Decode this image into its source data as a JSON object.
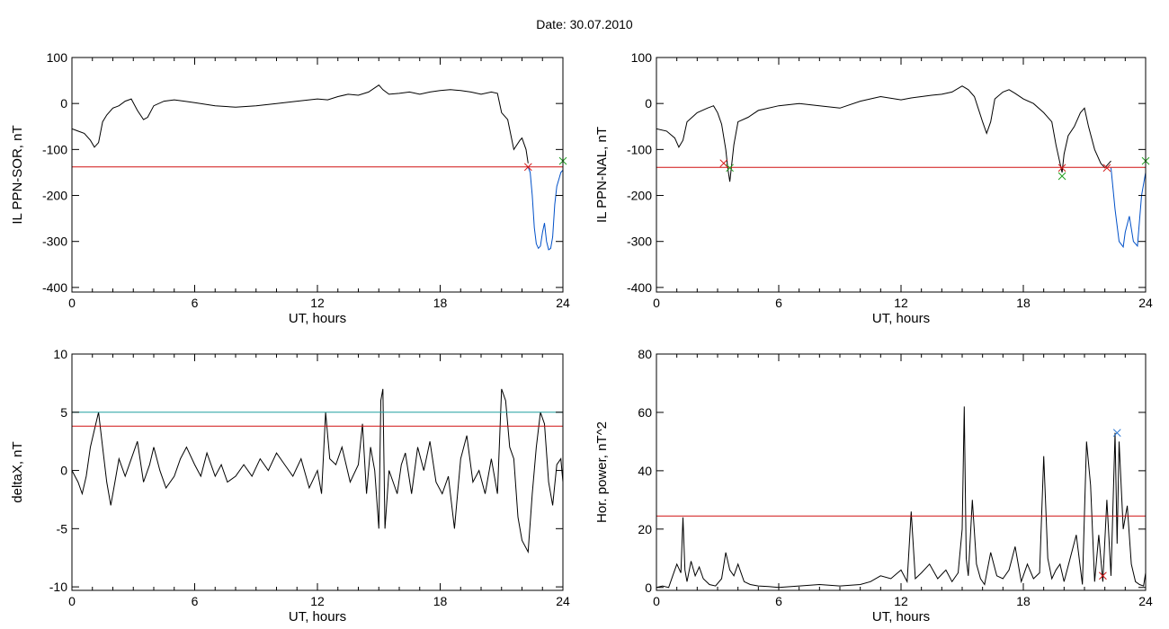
{
  "header": {
    "label": "Date:",
    "date": "30.07.2010"
  },
  "chart_data": [
    {
      "type": "line",
      "id": "il-sor",
      "ylabel": "IL PPN-SOR, nT",
      "xlabel": "UT, hours",
      "xlim": [
        0,
        24
      ],
      "ylim": [
        -410,
        100
      ],
      "xticks": [
        0,
        6,
        12,
        18,
        24
      ],
      "yticks": [
        100,
        0,
        -100,
        -200,
        -300,
        -400
      ],
      "series": [
        {
          "color": "#000000",
          "x": [
            0,
            0.3,
            0.6,
            0.9,
            1.1,
            1.3,
            1.5,
            1.7,
            2.0,
            2.3,
            2.6,
            2.9,
            3.2,
            3.5,
            3.7,
            4.0,
            4.5,
            5.0,
            5.5,
            6.0,
            7.0,
            8.0,
            9.0,
            10.0,
            11.0,
            12.0,
            12.5,
            13.0,
            13.5,
            14.0,
            14.5,
            15.0,
            15.2,
            15.5,
            16.0,
            16.5,
            17.0,
            17.5,
            18.0,
            18.5,
            19.0,
            19.5,
            20.0,
            20.5,
            20.8,
            21.0,
            21.3,
            21.6,
            21.9,
            22.0,
            22.2,
            22.3
          ],
          "y": [
            -55,
            -60,
            -65,
            -80,
            -95,
            -85,
            -40,
            -25,
            -10,
            -5,
            5,
            10,
            -15,
            -35,
            -30,
            -5,
            5,
            8,
            5,
            2,
            -5,
            -8,
            -5,
            0,
            5,
            10,
            8,
            15,
            20,
            18,
            25,
            40,
            30,
            20,
            22,
            25,
            20,
            25,
            28,
            30,
            28,
            25,
            20,
            25,
            22,
            -20,
            -35,
            -100,
            -80,
            -75,
            -100,
            -130
          ]
        },
        {
          "color": "#0050c8",
          "x": [
            22.3,
            22.4,
            22.5,
            22.6,
            22.7,
            22.8,
            22.9,
            23.0,
            23.1,
            23.2,
            23.3,
            23.4,
            23.5,
            23.6,
            23.7,
            23.8,
            23.9,
            24.0
          ],
          "y": [
            -138,
            -150,
            -200,
            -270,
            -305,
            -315,
            -310,
            -280,
            -260,
            -300,
            -318,
            -315,
            -290,
            -220,
            -180,
            -165,
            -150,
            -145
          ]
        },
        {
          "color": "#d01010",
          "x": [
            0,
            24
          ],
          "y": [
            -138,
            -138
          ]
        }
      ],
      "markers": [
        {
          "x": 22.3,
          "y": -138,
          "color": "#d01010"
        },
        {
          "x": 24.0,
          "y": -125,
          "color": "#20a020"
        }
      ]
    },
    {
      "type": "line",
      "id": "il-nal",
      "ylabel": "IL PPN-NAL, nT",
      "xlabel": "UT, hours",
      "xlim": [
        0,
        24
      ],
      "ylim": [
        -410,
        100
      ],
      "xticks": [
        0,
        6,
        12,
        18,
        24
      ],
      "yticks": [
        100,
        0,
        -100,
        -200,
        -300,
        -400
      ],
      "series": [
        {
          "color": "#000000",
          "x": [
            0,
            0.5,
            0.9,
            1.1,
            1.3,
            1.5,
            2.0,
            2.5,
            2.8,
            3.0,
            3.2,
            3.4,
            3.5,
            3.6,
            3.8,
            4.0,
            4.5,
            5.0,
            6.0,
            7.0,
            8.0,
            9.0,
            10.0,
            11.0,
            12.0,
            12.5,
            13.0,
            13.5,
            14.0,
            14.5,
            15.0,
            15.3,
            15.6,
            16.0,
            16.2,
            16.4,
            16.6,
            17.0,
            17.3,
            17.6,
            18.0,
            18.5,
            19.0,
            19.4,
            19.6,
            19.8,
            19.9,
            20.0,
            20.2,
            20.5,
            20.8,
            21.0,
            21.2,
            21.5,
            21.8,
            22.0,
            22.2,
            22.3
          ],
          "y": [
            -55,
            -60,
            -75,
            -95,
            -80,
            -40,
            -20,
            -10,
            -5,
            -20,
            -45,
            -100,
            -140,
            -170,
            -90,
            -40,
            -30,
            -15,
            -5,
            0,
            -5,
            -10,
            5,
            15,
            8,
            12,
            15,
            18,
            20,
            25,
            38,
            30,
            15,
            -40,
            -65,
            -40,
            10,
            25,
            30,
            22,
            10,
            0,
            -20,
            -40,
            -90,
            -130,
            -150,
            -110,
            -70,
            -50,
            -20,
            -10,
            -50,
            -100,
            -130,
            -140,
            -130,
            -125
          ]
        },
        {
          "color": "#0050c8",
          "x": [
            22.3,
            22.5,
            22.7,
            22.9,
            23.0,
            23.2,
            23.4,
            23.6,
            23.8,
            24.0
          ],
          "y": [
            -140,
            -230,
            -300,
            -312,
            -280,
            -245,
            -300,
            -310,
            -200,
            -150
          ]
        },
        {
          "color": "#d01010",
          "x": [
            0,
            24
          ],
          "y": [
            -139,
            -139
          ]
        }
      ],
      "markers": [
        {
          "x": 3.3,
          "y": -130,
          "color": "#d01010"
        },
        {
          "x": 3.6,
          "y": -140,
          "color": "#20a020"
        },
        {
          "x": 19.9,
          "y": -140,
          "color": "#d01010"
        },
        {
          "x": 19.9,
          "y": -158,
          "color": "#20a020"
        },
        {
          "x": 22.1,
          "y": -140,
          "color": "#d01010"
        },
        {
          "x": 24.0,
          "y": -125,
          "color": "#20a020"
        }
      ]
    },
    {
      "type": "line",
      "id": "deltax",
      "ylabel": "deltaX, nT",
      "xlabel": "UT, hours",
      "xlim": [
        0,
        24
      ],
      "ylim": [
        -10.3,
        10
      ],
      "xticks": [
        0,
        6,
        12,
        18,
        24
      ],
      "yticks": [
        10,
        5,
        0,
        -5,
        -10
      ],
      "series": [
        {
          "color": "#000000",
          "x": [
            0,
            0.3,
            0.5,
            0.7,
            0.9,
            1.1,
            1.3,
            1.5,
            1.7,
            1.9,
            2.1,
            2.3,
            2.6,
            2.9,
            3.2,
            3.5,
            3.8,
            4.0,
            4.3,
            4.6,
            5.0,
            5.3,
            5.6,
            6.0,
            6.3,
            6.6,
            7.0,
            7.3,
            7.6,
            8.0,
            8.4,
            8.8,
            9.2,
            9.6,
            10.0,
            10.4,
            10.8,
            11.2,
            11.6,
            12.0,
            12.2,
            12.4,
            12.6,
            12.9,
            13.2,
            13.6,
            14.0,
            14.2,
            14.4,
            14.6,
            14.8,
            15.0,
            15.1,
            15.2,
            15.3,
            15.5,
            15.7,
            15.9,
            16.1,
            16.3,
            16.6,
            16.9,
            17.2,
            17.5,
            17.8,
            18.1,
            18.4,
            18.7,
            19.0,
            19.3,
            19.6,
            19.9,
            20.2,
            20.5,
            20.8,
            21.0,
            21.2,
            21.4,
            21.6,
            21.8,
            22.0,
            22.3,
            22.5,
            22.7,
            22.9,
            23.1,
            23.3,
            23.5,
            23.7,
            23.9,
            24.0
          ],
          "y": [
            0,
            -1,
            -2,
            -0.5,
            2,
            3.5,
            5,
            2,
            -1,
            -3,
            -1,
            1,
            -0.5,
            1,
            2.5,
            -1,
            0.5,
            2,
            0,
            -1.5,
            -0.5,
            1,
            2,
            0.5,
            -0.5,
            1.5,
            -0.5,
            0.5,
            -1,
            -0.5,
            0.5,
            -0.5,
            1,
            0,
            1.5,
            0.5,
            -0.5,
            1,
            -1.5,
            0,
            -2,
            5,
            1,
            0.5,
            2,
            -1,
            0.5,
            4,
            -2,
            2,
            0,
            -5,
            6,
            7,
            -5,
            0,
            -1,
            -2,
            0.5,
            1.5,
            -2,
            2,
            0,
            2.5,
            -1,
            -2,
            -0.5,
            -5,
            1,
            3,
            -1,
            0,
            -2,
            1,
            -2,
            7,
            6,
            2,
            1,
            -4,
            -6,
            -7,
            -2,
            2,
            5,
            4,
            -1,
            -3,
            0.5,
            1,
            -1
          ]
        },
        {
          "color": "#d01010",
          "x": [
            0,
            24
          ],
          "y": [
            3.8,
            3.8
          ]
        },
        {
          "color": "#20a0a0",
          "x": [
            0,
            24
          ],
          "y": [
            5,
            5
          ]
        }
      ],
      "markers": []
    },
    {
      "type": "line",
      "id": "hor-power",
      "ylabel": "Hor. power, nT^2",
      "xlabel": "UT, hours",
      "xlim": [
        0,
        24
      ],
      "ylim": [
        -1,
        80
      ],
      "xticks": [
        0,
        6,
        12,
        18,
        24
      ],
      "yticks": [
        80,
        60,
        40,
        20,
        0
      ],
      "series": [
        {
          "color": "#000000",
          "x": [
            0,
            0.3,
            0.6,
            0.8,
            1.0,
            1.2,
            1.3,
            1.4,
            1.5,
            1.7,
            1.9,
            2.1,
            2.3,
            2.6,
            2.9,
            3.2,
            3.4,
            3.6,
            3.8,
            4.0,
            4.3,
            4.6,
            5.0,
            5.5,
            6.0,
            7.0,
            8.0,
            9.0,
            10.0,
            10.5,
            11.0,
            11.5,
            12.0,
            12.3,
            12.5,
            12.7,
            13.0,
            13.4,
            13.8,
            14.2,
            14.5,
            14.8,
            15.0,
            15.1,
            15.2,
            15.3,
            15.5,
            15.7,
            15.9,
            16.1,
            16.4,
            16.7,
            17.0,
            17.3,
            17.6,
            17.9,
            18.2,
            18.5,
            18.8,
            19.0,
            19.2,
            19.4,
            19.6,
            19.8,
            20.0,
            20.3,
            20.6,
            20.9,
            21.1,
            21.3,
            21.5,
            21.7,
            21.9,
            22.1,
            22.3,
            22.5,
            22.6,
            22.7,
            22.9,
            23.1,
            23.3,
            23.5,
            23.7,
            23.9,
            24.0
          ],
          "y": [
            0,
            0.5,
            0,
            4,
            8,
            5,
            24,
            6,
            2,
            9,
            4,
            7,
            3,
            1,
            0.5,
            3,
            12,
            6,
            4,
            8,
            2,
            1,
            0.5,
            0.3,
            0,
            0.5,
            1,
            0.5,
            1,
            2,
            4,
            3,
            6,
            2,
            26,
            3,
            5,
            8,
            3,
            6,
            2,
            5,
            20,
            62,
            10,
            4,
            30,
            8,
            3,
            1,
            12,
            4,
            3,
            6,
            14,
            2,
            8,
            3,
            5,
            45,
            10,
            3,
            6,
            8,
            2,
            10,
            18,
            1,
            50,
            35,
            2,
            18,
            2,
            30,
            4,
            53,
            15,
            50,
            20,
            28,
            8,
            2,
            1,
            0.5,
            5
          ]
        },
        {
          "color": "#d01010",
          "x": [
            0,
            24
          ],
          "y": [
            24.5,
            24.5
          ]
        }
      ],
      "markers": [
        {
          "x": 22.6,
          "y": 53,
          "color": "#2070d0"
        },
        {
          "x": 21.9,
          "y": 4,
          "color": "#d01010"
        }
      ]
    }
  ]
}
